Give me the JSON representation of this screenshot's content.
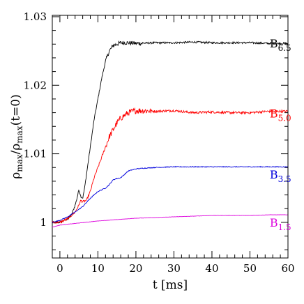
{
  "chart_data": {
    "type": "line",
    "xlabel": "t [ms]",
    "ylabel": {
      "base": "ρ",
      "sub": "max",
      "den": "ρ",
      "den_sub": "max",
      "suffix": "(t=0)"
    },
    "xlim": [
      -2,
      60
    ],
    "ylim": [
      0.9948,
      1.0302
    ],
    "xticks": [
      0,
      10,
      20,
      30,
      40,
      50,
      60
    ],
    "xtick_labels": [
      "0",
      "10",
      "20",
      "30",
      "40",
      "50",
      "60"
    ],
    "yticks": [
      1.0,
      1.01,
      1.02,
      1.03
    ],
    "ytick_labels": [
      "1",
      "1.01",
      "1.02",
      "1.03"
    ],
    "grid": false,
    "legend": "none",
    "series": [
      {
        "name": "B",
        "sub": "6.5",
        "color": "#000000",
        "noise": 0.00028,
        "label_pos": [
          55.2,
          1.0255
        ],
        "x": [
          -2,
          0,
          2,
          3,
          4,
          4.5,
          5,
          5.5,
          6,
          6.5,
          7,
          7.5,
          8,
          8.5,
          9,
          9.5,
          10,
          11,
          12,
          13,
          14,
          15,
          16,
          18,
          20,
          25,
          30,
          35,
          40,
          45,
          50,
          55,
          60
        ],
        "y": [
          1.0,
          1.0,
          1.0005,
          1.001,
          1.0025,
          1.0035,
          1.0048,
          1.0038,
          1.0035,
          1.005,
          1.007,
          1.009,
          1.011,
          1.013,
          1.015,
          1.0165,
          1.018,
          1.021,
          1.0235,
          1.025,
          1.0258,
          1.026,
          1.0262,
          1.0262,
          1.0261,
          1.0262,
          1.0262,
          1.0263,
          1.0262,
          1.0262,
          1.0262,
          1.0261,
          1.0261
        ]
      },
      {
        "name": "B",
        "sub": "5.0",
        "color": "#ff0000",
        "noise": 0.00035,
        "label_pos": [
          55.2,
          1.0153
        ],
        "x": [
          -2,
          0,
          2,
          3,
          4,
          5,
          5.5,
          6,
          7,
          8,
          9,
          10,
          11,
          12,
          13,
          14,
          15,
          16,
          18,
          20,
          22,
          25,
          30,
          35,
          40,
          45,
          50,
          55,
          60
        ],
        "y": [
          1.0,
          1.0,
          1.0005,
          1.001,
          1.0015,
          1.0025,
          1.0032,
          1.003,
          1.0032,
          1.0045,
          1.0065,
          1.008,
          1.0095,
          1.011,
          1.0125,
          1.0135,
          1.0145,
          1.0152,
          1.016,
          1.0163,
          1.0163,
          1.0162,
          1.0163,
          1.016,
          1.0161,
          1.016,
          1.016,
          1.0162,
          1.0162
        ]
      },
      {
        "name": "B",
        "sub": "3.5",
        "color": "#0000dd",
        "noise": 0.00012,
        "label_pos": [
          55.2,
          1.0064
        ],
        "x": [
          -2,
          0,
          2,
          4,
          6,
          8,
          10,
          12,
          13,
          14,
          15,
          16,
          17,
          18,
          20,
          22,
          25,
          30,
          35,
          40,
          45,
          50,
          55,
          60
        ],
        "y": [
          1.0,
          1.0003,
          1.0008,
          1.0015,
          1.0023,
          1.0035,
          1.0045,
          1.005,
          1.0055,
          1.0062,
          1.0064,
          1.0065,
          1.007,
          1.0075,
          1.0078,
          1.0079,
          1.008,
          1.0081,
          1.0081,
          1.0081,
          1.0081,
          1.0081,
          1.0081,
          1.0081
        ]
      },
      {
        "name": "B",
        "sub": "1.5",
        "color": "#dd00dd",
        "noise": 4e-05,
        "label_pos": [
          55.2,
          0.9994
        ],
        "x": [
          -2,
          0,
          5,
          10,
          15,
          20,
          25,
          30,
          35,
          40,
          45,
          50,
          55,
          60
        ],
        "y": [
          0.9993,
          0.9996,
          0.9999,
          1.0002,
          1.0004,
          1.0006,
          1.0007,
          1.0008,
          1.0009,
          1.001,
          1.001,
          1.001,
          1.0011,
          1.0011
        ]
      }
    ]
  }
}
